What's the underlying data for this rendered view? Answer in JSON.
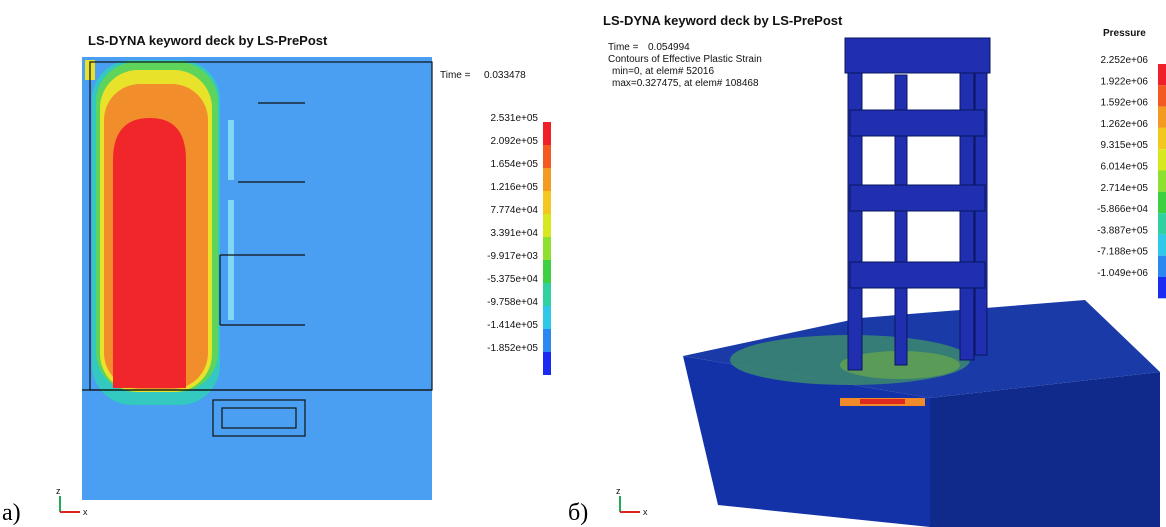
{
  "panels": [
    {
      "title": "LS-DYNA keyword deck by LS-PrePost",
      "time_label": "Time =",
      "time_value": "0.033478",
      "legend": [
        "2.531e+05",
        "2.092e+05",
        "1.654e+05",
        "1.216e+05",
        "7.774e+04",
        "3.391e+04",
        "-9.917e+03",
        "-5.375e+04",
        "-9.758e+04",
        "-1.414e+05",
        "-1.852e+05"
      ],
      "axes": [
        "z",
        "x"
      ],
      "panel_label": "а)"
    },
    {
      "title": "LS-DYNA keyword deck by LS-PrePost",
      "time_label": "Time =",
      "time_value": "0.054994",
      "info": [
        "Contours of Effective Plastic Strain",
        "min=0, at elem# 52016",
        "max=0.327475, at elem# 108468"
      ],
      "legend_title": "Pressure",
      "legend": [
        "2.252e+06",
        "1.922e+06",
        "1.592e+06",
        "1.262e+06",
        "9.315e+05",
        "6.014e+05",
        "2.714e+05",
        "-5.866e+04",
        "-3.887e+05",
        "-7.188e+05",
        "-1.049e+06"
      ],
      "axes": [
        "z",
        "x"
      ],
      "panel_label": "б)"
    }
  ]
}
